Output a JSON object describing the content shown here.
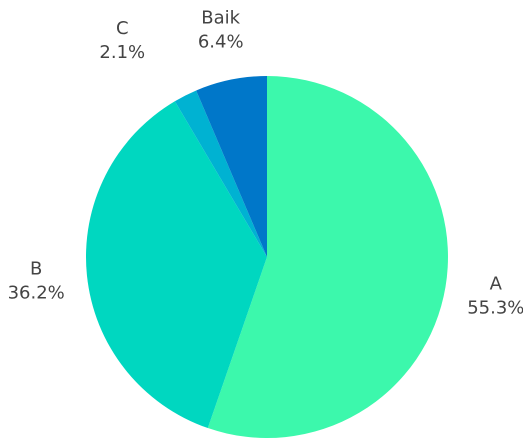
{
  "chart_data": {
    "type": "pie",
    "start_angle_deg": 0,
    "direction": "clockwise",
    "slices": [
      {
        "label": "A",
        "percent_label": "55.3%",
        "value": 55.3,
        "color": "#3cf8ac"
      },
      {
        "label": "B",
        "percent_label": "36.2%",
        "value": 36.2,
        "color": "#00d7c0"
      },
      {
        "label": "C",
        "percent_label": "2.1%",
        "value": 2.1,
        "color": "#00b2d2"
      },
      {
        "label": "Baik",
        "percent_label": "6.4%",
        "value": 6.4,
        "color": "#0077c9"
      }
    ],
    "legend": "none",
    "title": ""
  }
}
